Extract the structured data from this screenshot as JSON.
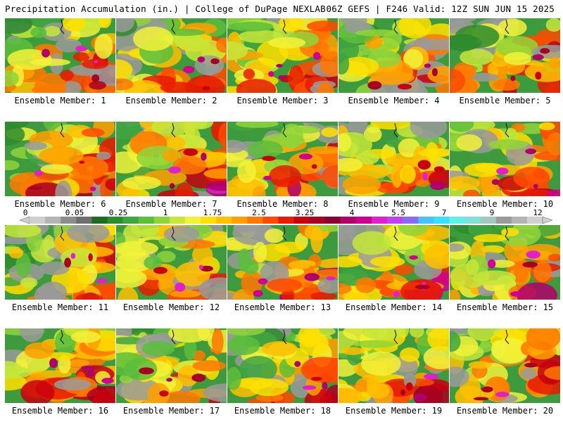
{
  "header": {
    "left": "Precipitation Accumulation (in.) | College of DuPage NEXLAB",
    "right": "06Z GEFS | F246 Valid: 12Z SUN JUN 15 2025"
  },
  "colorbar": {
    "tick_labels": [
      "0",
      "0.05",
      "0.25",
      "1",
      "1.75",
      "2.5",
      "3.25",
      "4",
      "5.5",
      "7",
      "9",
      "12"
    ],
    "colors": [
      "#cfcfcf",
      "#b4b4b4",
      "#8c8c8c",
      "#6e6e6e",
      "#1f6b1f",
      "#2e8b2e",
      "#3fa53f",
      "#5cbe3c",
      "#8fd43a",
      "#c6e63a",
      "#f2f23a",
      "#ffe000",
      "#ffc000",
      "#ffa000",
      "#ff7800",
      "#ff4a00",
      "#e81a00",
      "#c8000e",
      "#a80020",
      "#8a0030",
      "#b0006a",
      "#d0008e",
      "#e020c8",
      "#c040f0",
      "#8a6cf0",
      "#4ac0f8",
      "#38e0ff",
      "#60f0e8",
      "#80e0d8",
      "#a0c8c0",
      "#9a9a9a",
      "#b4b4b4",
      "#d0d0d0"
    ]
  },
  "panels": [
    {
      "label": "Ensemble Member: 1"
    },
    {
      "label": "Ensemble Member: 2"
    },
    {
      "label": "Ensemble Member: 3"
    },
    {
      "label": "Ensemble Member: 4"
    },
    {
      "label": "Ensemble Member: 5"
    },
    {
      "label": "Ensemble Member: 6"
    },
    {
      "label": "Ensemble Member: 7"
    },
    {
      "label": "Ensemble Member: 8"
    },
    {
      "label": "Ensemble Member: 9"
    },
    {
      "label": "Ensemble Member: 10"
    },
    {
      "label": "Ensemble Member: 11"
    },
    {
      "label": "Ensemble Member: 12"
    },
    {
      "label": "Ensemble Member: 13"
    },
    {
      "label": "Ensemble Member: 14"
    },
    {
      "label": "Ensemble Member: 15"
    },
    {
      "label": "Ensemble Member: 16"
    },
    {
      "label": "Ensemble Member: 17"
    },
    {
      "label": "Ensemble Member: 18"
    },
    {
      "label": "Ensemble Member: 19"
    },
    {
      "label": "Ensemble Member: 20"
    }
  ]
}
